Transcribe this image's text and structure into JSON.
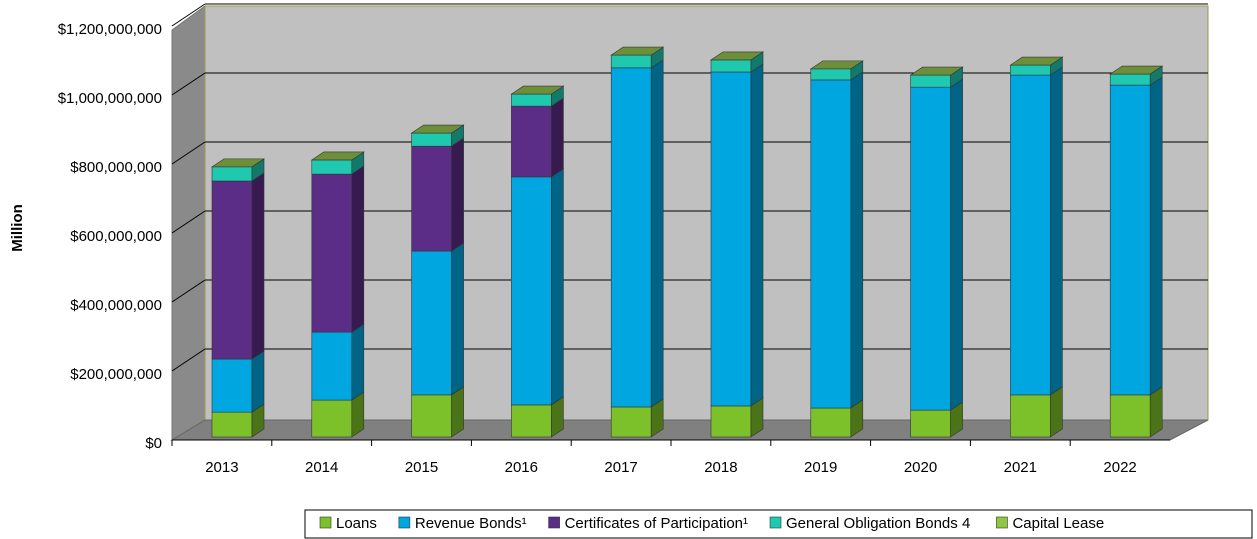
{
  "chart_data": {
    "type": "bar3d_stacked",
    "y_label": "Million",
    "categories": [
      "2013",
      "2014",
      "2015",
      "2016",
      "2017",
      "2018",
      "2019",
      "2020",
      "2021",
      "2022"
    ],
    "series": [
      {
        "name": "Loans",
        "color": "#7dc12a",
        "values": [
          72000000,
          107000000,
          122000000,
          93000000,
          87000000,
          90000000,
          84000000,
          78000000,
          122000000,
          122000000
        ]
      },
      {
        "name": "Revenue Bonds¹",
        "color": "#00a6e0",
        "values": [
          154000000,
          197000000,
          417000000,
          661000000,
          983000000,
          968000000,
          951000000,
          936000000,
          927000000,
          898000000
        ]
      },
      {
        "name": "Certificates of Participation¹",
        "color": "#5b2d86",
        "values": [
          516000000,
          458000000,
          304000000,
          205000000,
          0,
          0,
          0,
          0,
          0,
          0
        ]
      },
      {
        "name": "General  Obligation Bonds 4",
        "color": "#1fc9b0",
        "values": [
          41000000,
          41000000,
          38000000,
          35000000,
          37000000,
          35000000,
          32000000,
          35000000,
          29000000,
          32000000
        ]
      },
      {
        "name": "Capital  Lease",
        "color": "#8dc63f",
        "values": [
          0,
          0,
          0,
          0,
          0,
          0,
          0,
          0,
          0,
          0
        ]
      }
    ],
    "ylim": [
      0,
      1200000000
    ],
    "yticks": [
      {
        "value": 0,
        "label": "$0"
      },
      {
        "value": 200000000,
        "label": "$200,000,000"
      },
      {
        "value": 400000000,
        "label": "$400,000,000"
      },
      {
        "value": 600000000,
        "label": "$600,000,000"
      },
      {
        "value": 800000000,
        "label": "$800,000,000"
      },
      {
        "value": 1000000000,
        "label": "$1,000,000,000"
      },
      {
        "value": 1200000000,
        "label": "$1,200,000,000"
      }
    ],
    "grid": true
  }
}
